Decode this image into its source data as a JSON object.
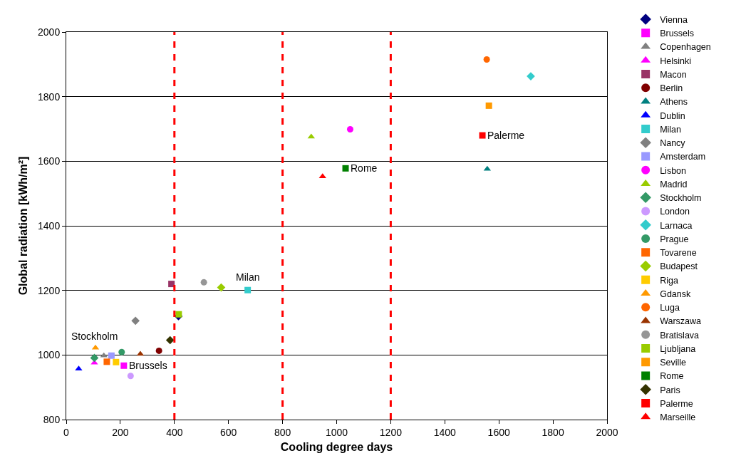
{
  "chart_data": {
    "type": "scatter",
    "xlabel": "Cooling degree days",
    "ylabel": "Global radiation [kWh/m²]",
    "xlim": [
      0,
      2000
    ],
    "xticks": [
      0,
      200,
      400,
      600,
      800,
      1000,
      1200,
      1400,
      1600,
      1800,
      2000
    ],
    "ylim": [
      800,
      2000
    ],
    "yticks": [
      800,
      1000,
      1200,
      1400,
      1600,
      1800,
      2000
    ],
    "grid": "y",
    "legend": "right",
    "series": [
      {
        "name": "Vienna",
        "color": "#000080",
        "marker": "diamond",
        "x": [
          415
        ],
        "values": [
          1120
        ]
      },
      {
        "name": "Brussels",
        "color": "#ff00ff",
        "marker": "square",
        "x": [
          213
        ],
        "values": [
          967
        ]
      },
      {
        "name": "Copenhagen",
        "color": "#808080",
        "marker": "triangle",
        "x": [
          139
        ],
        "values": [
          998
        ]
      },
      {
        "name": "Helsinki",
        "color": "#ff00ff",
        "marker": "triangle",
        "x": [
          104
        ],
        "values": [
          976
        ]
      },
      {
        "name": "Macon",
        "color": "#993366",
        "marker": "square",
        "x": [
          389
        ],
        "values": [
          1220
        ]
      },
      {
        "name": "Berlin",
        "color": "#800000",
        "marker": "circle",
        "x": [
          343
        ],
        "values": [
          1013
        ]
      },
      {
        "name": "Athens",
        "color": "#008080",
        "marker": "triangle",
        "x": [
          1557
        ],
        "values": [
          1576
        ]
      },
      {
        "name": "Dublin",
        "color": "#0000ff",
        "marker": "triangle",
        "x": [
          46
        ],
        "values": [
          957
        ]
      },
      {
        "name": "Milan",
        "color": "#33cccc",
        "marker": "square",
        "x": [
          671
        ],
        "values": [
          1201
        ]
      },
      {
        "name": "Nancy",
        "color": "#808080",
        "marker": "diamond",
        "x": [
          256
        ],
        "values": [
          1106
        ]
      },
      {
        "name": "Amsterdam",
        "color": "#9999ff",
        "marker": "square",
        "x": [
          167
        ],
        "values": [
          998
        ]
      },
      {
        "name": "Lisbon",
        "color": "#ff00ff",
        "marker": "circle",
        "x": [
          1050
        ],
        "values": [
          1699
        ]
      },
      {
        "name": "Madrid",
        "color": "#99cc00",
        "marker": "triangle",
        "x": [
          906
        ],
        "values": [
          1676
        ]
      },
      {
        "name": "Stockholm",
        "color": "#339966",
        "marker": "diamond",
        "x": [
          104
        ],
        "values": [
          991
        ]
      },
      {
        "name": "London",
        "color": "#cc99ff",
        "marker": "circle",
        "x": [
          238
        ],
        "values": [
          935
        ]
      },
      {
        "name": "Larnaca",
        "color": "#33cccc",
        "marker": "diamond",
        "x": [
          1718
        ],
        "values": [
          1863
        ]
      },
      {
        "name": "Prague",
        "color": "#339966",
        "marker": "circle",
        "x": [
          205
        ],
        "values": [
          1009
        ]
      },
      {
        "name": "Tovarene",
        "color": "#ff6600",
        "marker": "square",
        "x": [
          150
        ],
        "values": [
          979
        ]
      },
      {
        "name": "Budapest",
        "color": "#99cc00",
        "marker": "diamond",
        "x": [
          573
        ],
        "values": [
          1209
        ]
      },
      {
        "name": "Riga",
        "color": "#ffcc00",
        "marker": "square",
        "x": [
          184
        ],
        "values": [
          978
        ]
      },
      {
        "name": "Gdansk",
        "color": "#ff9900",
        "marker": "triangle",
        "x": [
          108
        ],
        "values": [
          1022
        ]
      },
      {
        "name": "Luga",
        "color": "#ff6600",
        "marker": "circle",
        "x": [
          1555
        ],
        "values": [
          1915
        ]
      },
      {
        "name": "Warszawa",
        "color": "#993300",
        "marker": "triangle",
        "x": [
          274
        ],
        "values": [
          1003
        ]
      },
      {
        "name": "Bratislava",
        "color": "#969696",
        "marker": "circle",
        "x": [
          509
        ],
        "values": [
          1225
        ]
      },
      {
        "name": "Ljubljana",
        "color": "#99cc00",
        "marker": "square",
        "x": [
          416
        ],
        "values": [
          1126
        ]
      },
      {
        "name": "Seville",
        "color": "#ff9900",
        "marker": "square",
        "x": [
          1563
        ],
        "values": [
          1772
        ]
      },
      {
        "name": "Rome",
        "color": "#008000",
        "marker": "square",
        "x": [
          1033
        ],
        "values": [
          1578
        ]
      },
      {
        "name": "Paris",
        "color": "#333300",
        "marker": "diamond",
        "x": [
          384
        ],
        "values": [
          1046
        ]
      },
      {
        "name": "Palerme",
        "color": "#ff0000",
        "marker": "square",
        "x": [
          1539
        ],
        "values": [
          1680
        ]
      },
      {
        "name": "Marseille",
        "color": "#ff0000",
        "marker": "triangle",
        "x": [
          948
        ],
        "values": [
          1553
        ]
      }
    ],
    "ref_lines": [
      {
        "axis": "x",
        "value": 400,
        "color": "#ff0000",
        "line_style": "dashed"
      },
      {
        "axis": "x",
        "value": 800,
        "color": "#ff0000",
        "line_style": "dashed"
      },
      {
        "axis": "x",
        "value": 1200,
        "color": "#ff0000",
        "line_style": "dashed"
      }
    ],
    "annotations": [
      {
        "text": "Stockholm",
        "x": 104,
        "y": 991
      },
      {
        "text": "Brussels",
        "x": 213,
        "y": 967
      },
      {
        "text": "Milan",
        "x": 671,
        "y": 1201
      },
      {
        "text": "Rome",
        "x": 1033,
        "y": 1578
      },
      {
        "text": "Palerme",
        "x": 1539,
        "y": 1680
      }
    ]
  }
}
